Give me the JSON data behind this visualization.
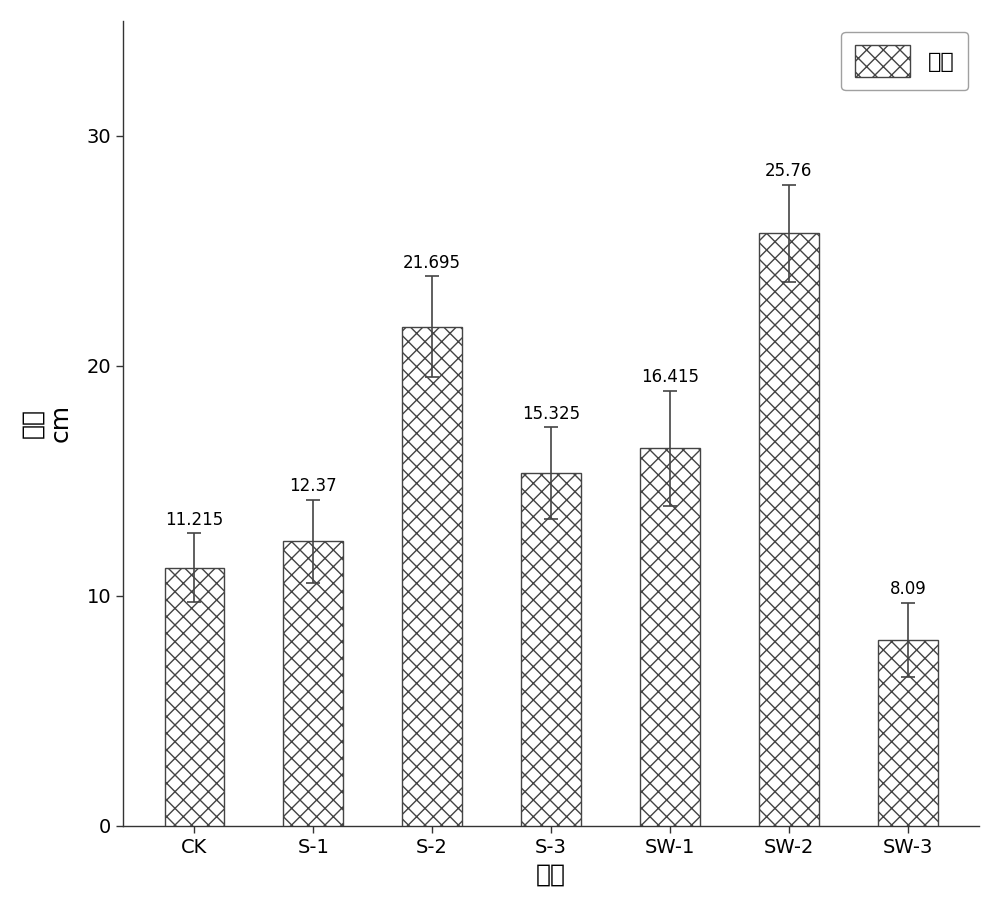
{
  "categories": [
    "CK",
    "S-1",
    "S-2",
    "S-3",
    "SW-1",
    "SW-2",
    "SW-3"
  ],
  "values": [
    11.215,
    12.37,
    21.695,
    15.325,
    16.415,
    25.76,
    8.09
  ],
  "errors": [
    1.5,
    1.8,
    2.2,
    2.0,
    2.5,
    2.1,
    1.6
  ],
  "bar_facecolor": "#ffffff",
  "bar_edgecolor": "#444444",
  "hatch": "xx",
  "xlabel": "处理",
  "ylabel_line1": "株高",
  "ylabel_line2": "cm",
  "ylim": [
    0,
    35
  ],
  "yticks": [
    0,
    10,
    20,
    30
  ],
  "legend_label": "株高",
  "value_labels": [
    "11.215",
    "12.37",
    "21.695",
    "15.325",
    "16.415",
    "25.76",
    "8.09"
  ],
  "label_fontsize": 18,
  "tick_fontsize": 14,
  "value_label_fontsize": 12,
  "legend_fontsize": 16,
  "bar_width": 0.5,
  "background_color": "#ffffff",
  "figsize": [
    10.0,
    9.07
  ],
  "spine_color": "#333333"
}
